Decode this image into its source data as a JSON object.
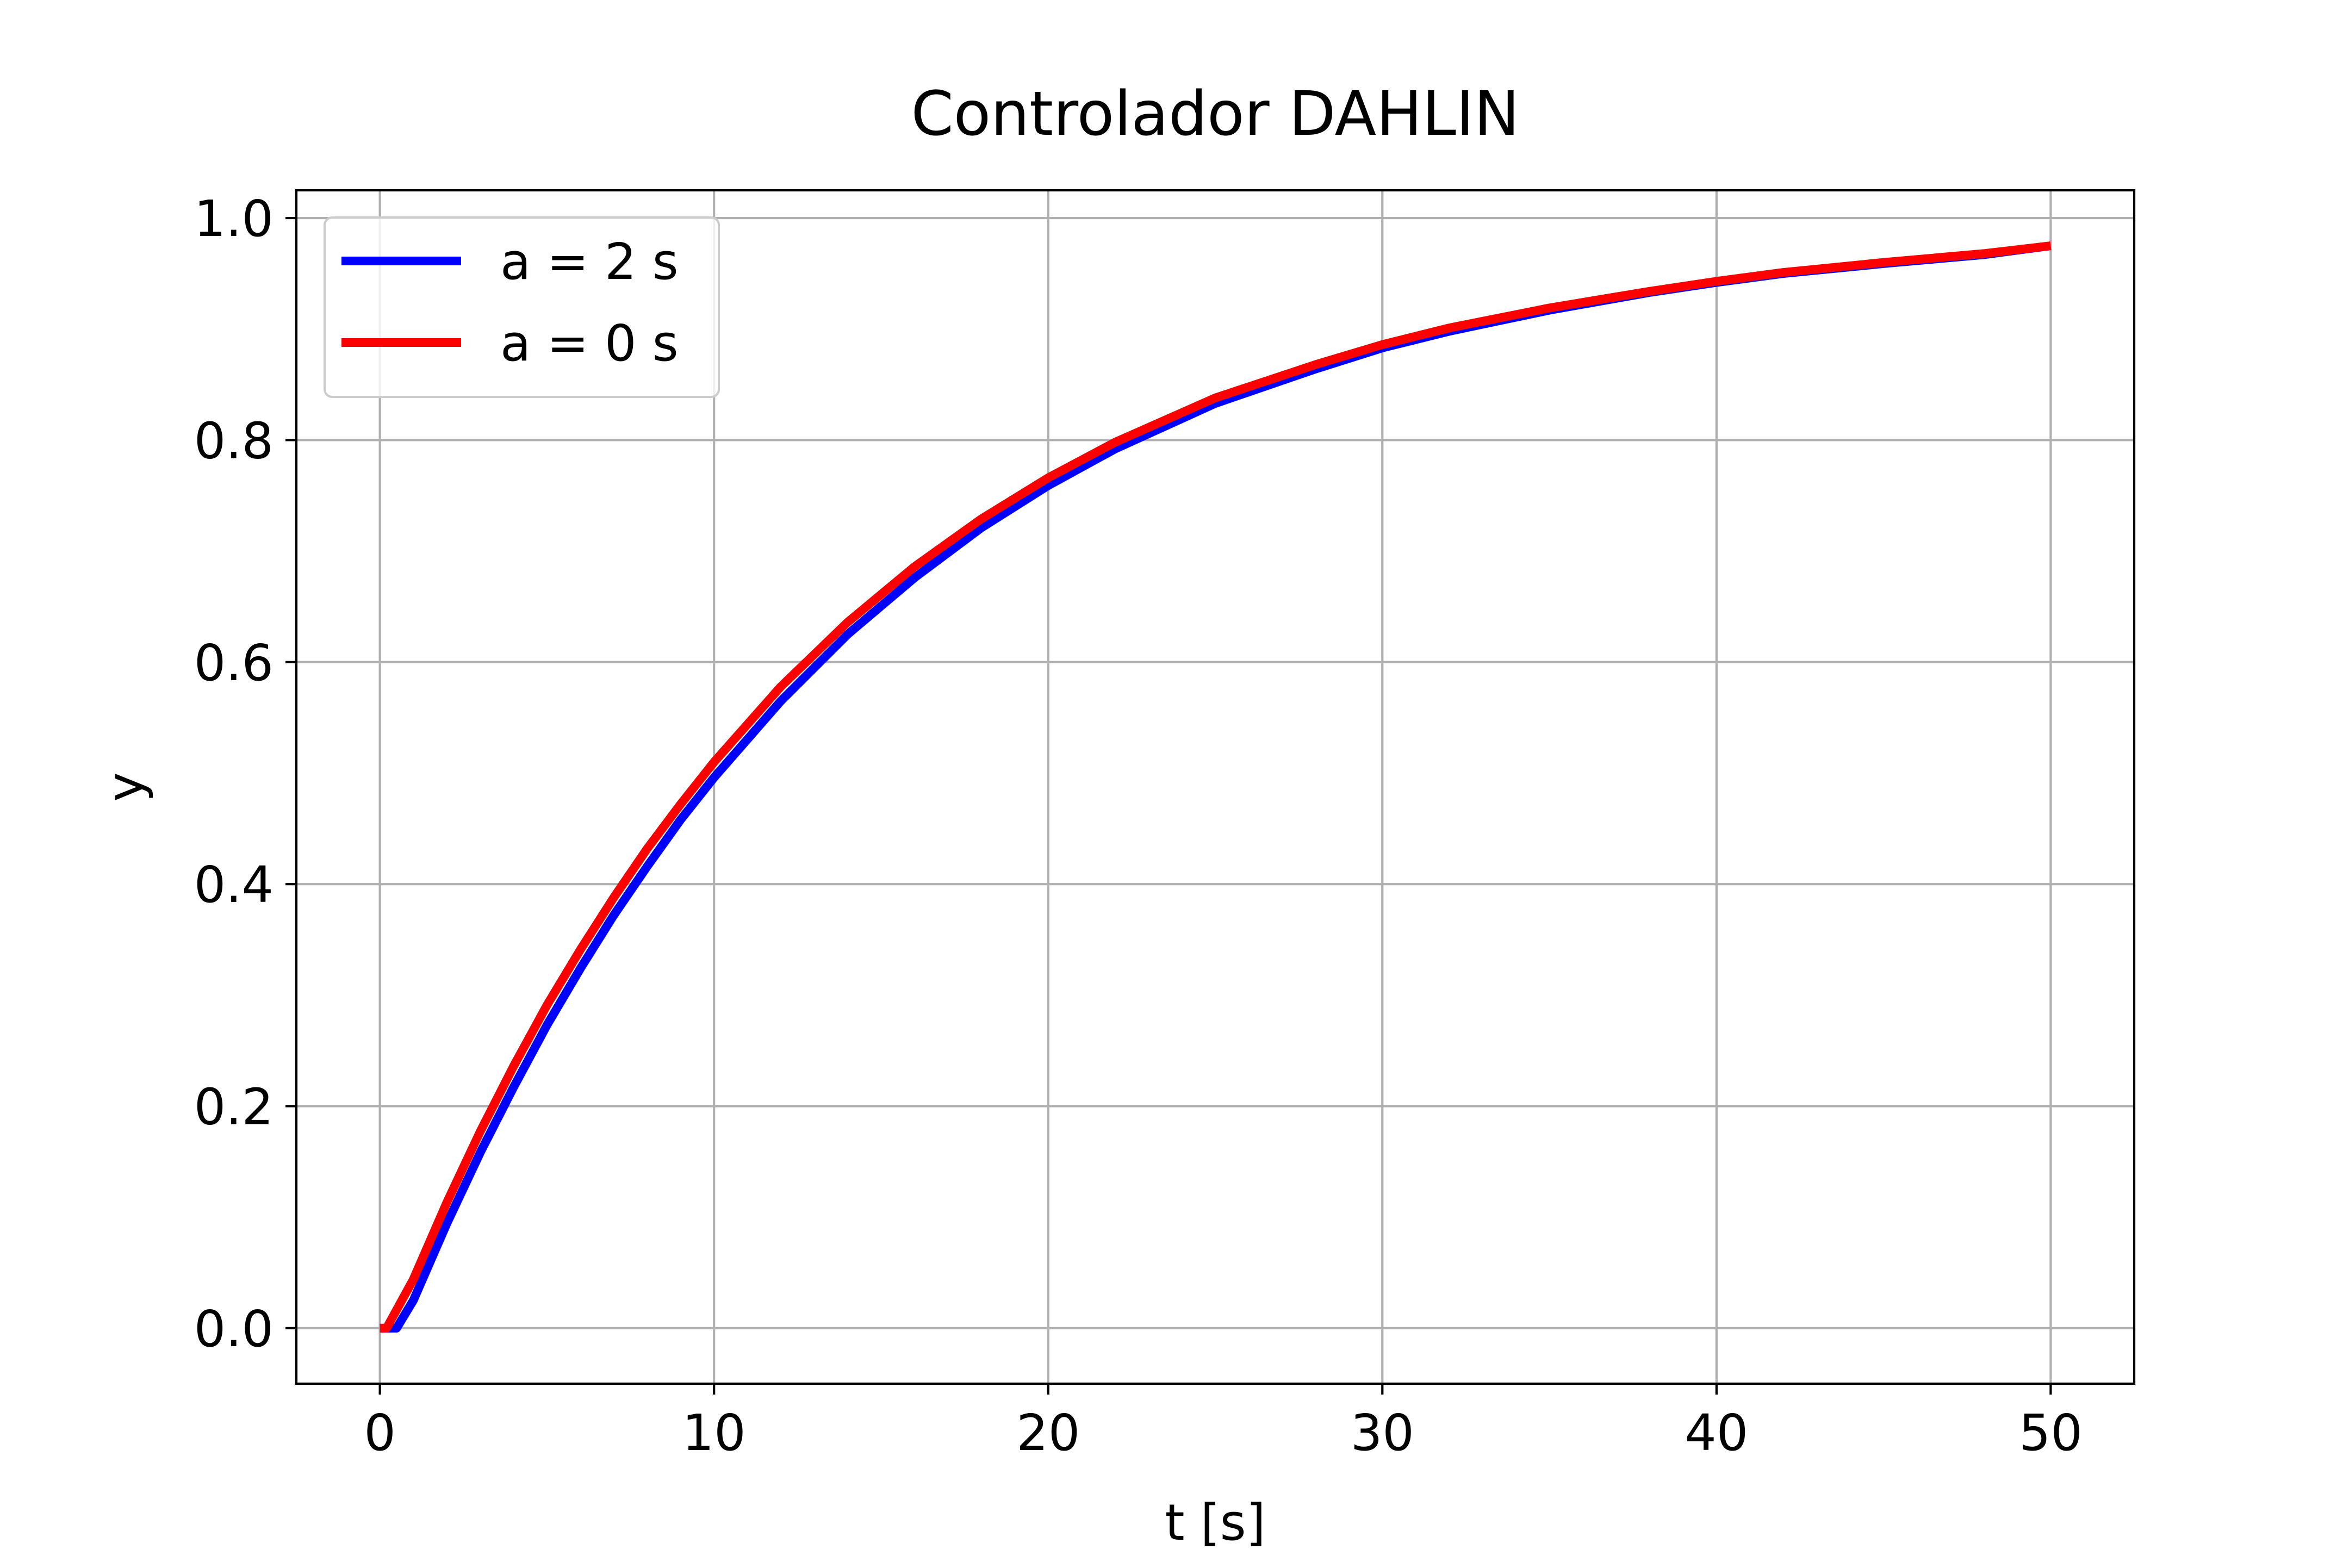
{
  "chart_data": {
    "type": "line",
    "title": "Controlador DAHLIN",
    "xlabel": "t [s]",
    "ylabel": "y",
    "xlim": [
      -2.5,
      52.5
    ],
    "ylim": [
      -0.05,
      1.025
    ],
    "xticks": [
      0,
      10,
      20,
      30,
      40,
      50
    ],
    "xtick_labels": [
      "0",
      "10",
      "20",
      "30",
      "40",
      "50"
    ],
    "yticks": [
      0.0,
      0.2,
      0.4,
      0.6,
      0.8,
      1.0
    ],
    "ytick_labels": [
      "0.0",
      "0.2",
      "0.4",
      "0.6",
      "0.8",
      "1.0"
    ],
    "grid": true,
    "legend_position": "upper-left",
    "series": [
      {
        "name": "a = 2 s",
        "color": "#0000ff",
        "x": [
          0,
          0.5,
          1,
          2,
          3,
          4,
          5,
          6,
          7,
          8,
          9,
          10,
          12,
          14,
          16,
          18,
          20,
          22,
          25,
          28,
          30,
          32,
          35,
          38,
          40,
          42,
          45,
          48,
          50
        ],
        "y": [
          0.0,
          0.0,
          0.025,
          0.094,
          0.158,
          0.217,
          0.273,
          0.324,
          0.372,
          0.416,
          0.458,
          0.496,
          0.565,
          0.625,
          0.676,
          0.721,
          0.759,
          0.792,
          0.833,
          0.864,
          0.883,
          0.898,
          0.917,
          0.933,
          0.942,
          0.95,
          0.959,
          0.967,
          0.975
        ]
      },
      {
        "name": "a = 0 s",
        "color": "#ff0000",
        "x": [
          0,
          0.2,
          1,
          2,
          3,
          4,
          5,
          6,
          7,
          8,
          9,
          10,
          12,
          14,
          16,
          18,
          20,
          22,
          25,
          28,
          30,
          32,
          35,
          38,
          40,
          42,
          45,
          48,
          50
        ],
        "y": [
          0.0,
          0.0,
          0.044,
          0.113,
          0.177,
          0.236,
          0.291,
          0.341,
          0.388,
          0.432,
          0.472,
          0.51,
          0.578,
          0.636,
          0.686,
          0.729,
          0.766,
          0.798,
          0.838,
          0.868,
          0.886,
          0.901,
          0.919,
          0.934,
          0.943,
          0.951,
          0.96,
          0.968,
          0.975
        ]
      }
    ]
  }
}
